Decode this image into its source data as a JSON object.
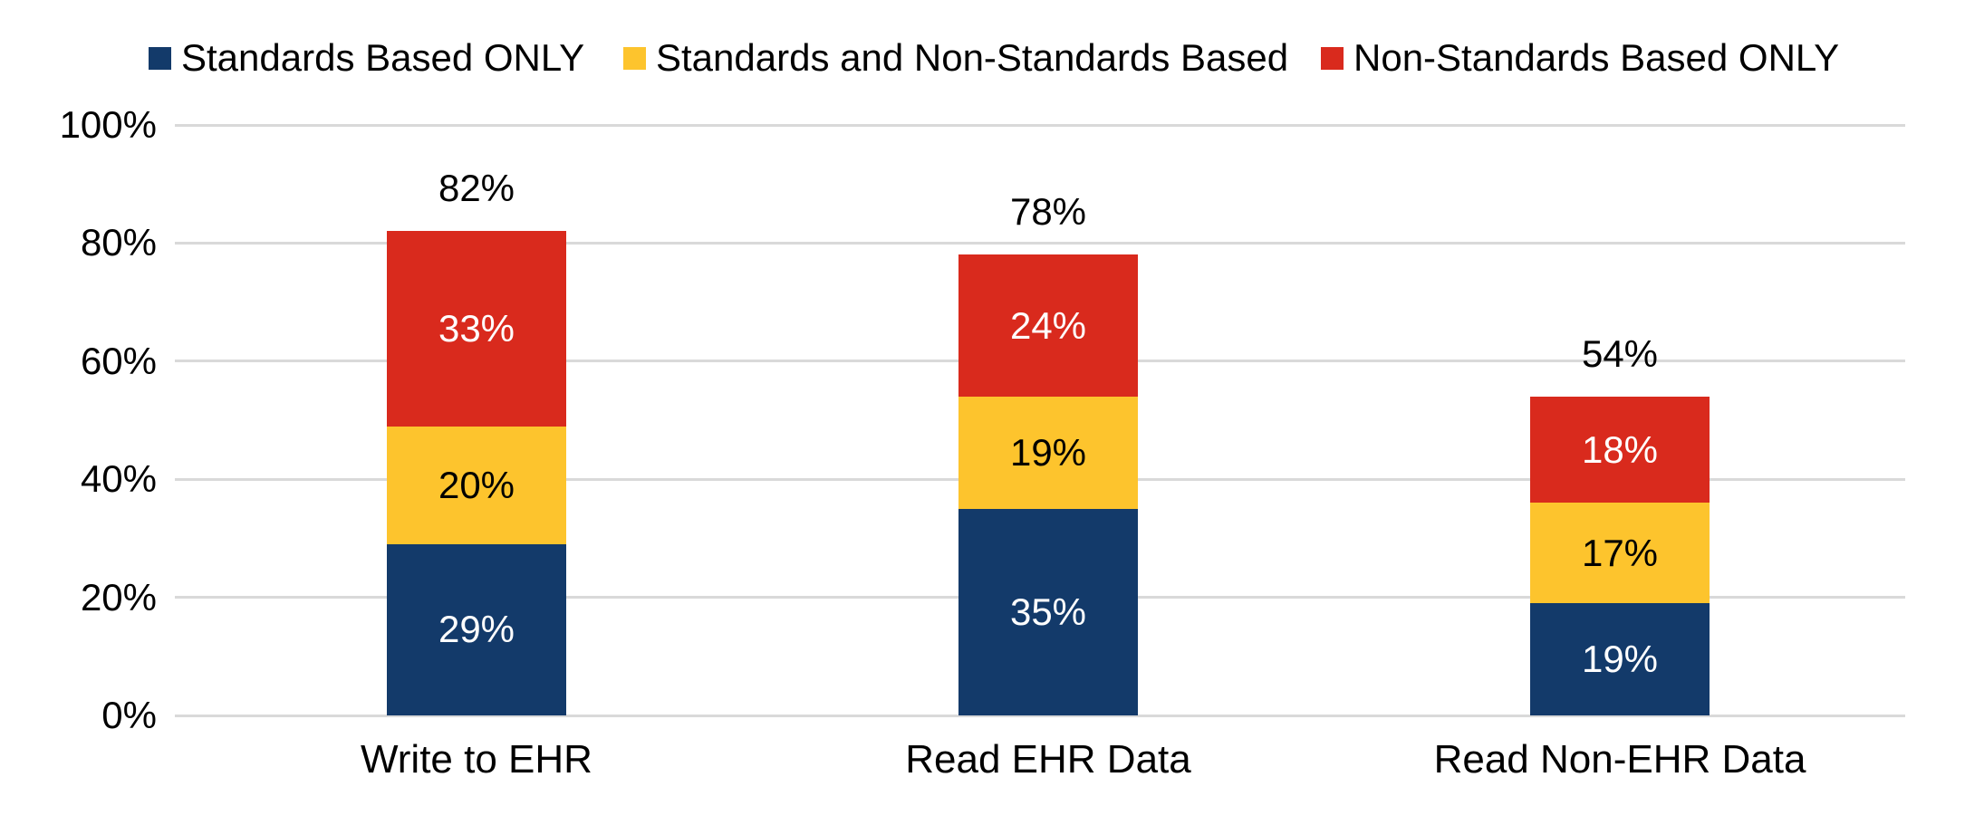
{
  "chart_data": {
    "type": "bar",
    "stacked": true,
    "categories": [
      "Write to EHR",
      "Read EHR Data",
      "Read Non-EHR Data"
    ],
    "series": [
      {
        "name": "Standards Based ONLY",
        "color": "#133a6a",
        "label_color": "#ffffff",
        "values": [
          29,
          35,
          19
        ],
        "labels": [
          "29%",
          "35%",
          "19%"
        ]
      },
      {
        "name": "Standards and Non-Standards Based",
        "color": "#fdc42d",
        "label_color": "#000000",
        "values": [
          20,
          19,
          17
        ],
        "labels": [
          "20%",
          "19%",
          "17%"
        ]
      },
      {
        "name": "Non-Standards Based ONLY",
        "color": "#d92a1d",
        "label_color": "#ffffff",
        "values": [
          33,
          24,
          18
        ],
        "labels": [
          "33%",
          "24%",
          "18%"
        ]
      }
    ],
    "totals": [
      82,
      78,
      54
    ],
    "total_labels": [
      "82%",
      "78%",
      "54%"
    ],
    "ylim": [
      0,
      100
    ],
    "yticks": [
      {
        "value": 0,
        "label": "0%"
      },
      {
        "value": 20,
        "label": "20%"
      },
      {
        "value": 40,
        "label": "40%"
      },
      {
        "value": 60,
        "label": "60%"
      },
      {
        "value": 80,
        "label": "80%"
      },
      {
        "value": 100,
        "label": "100%"
      }
    ],
    "legend_position": "top",
    "grid": true,
    "colors": {
      "gridline": "#d9d9d9",
      "text": "#000000",
      "background": "#ffffff"
    }
  }
}
